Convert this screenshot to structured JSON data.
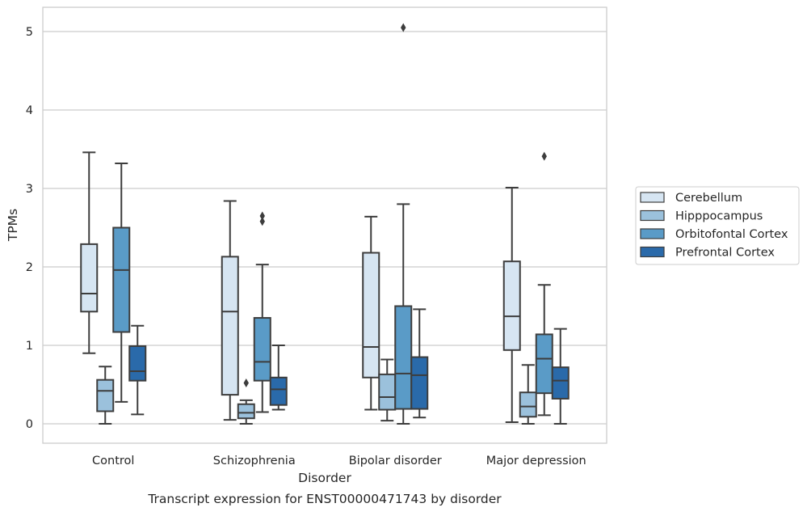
{
  "chart_data": {
    "type": "box",
    "xlabel": "Disorder",
    "ylabel": "TPMs",
    "caption": "Transcript expression for ENST00000471743 by disorder",
    "ylim": [
      -0.25,
      5.3
    ],
    "yticks": [
      0,
      1,
      2,
      3,
      4,
      5
    ],
    "grid": "horizontal",
    "legend_position": "right",
    "categories": [
      "Control",
      "Schizophrenia",
      "Bipolar disorder",
      "Major depression"
    ],
    "series": [
      {
        "name": "Cerebellum",
        "color": "#d6e5f2",
        "boxes": [
          {
            "whisker_low": 0.9,
            "q1": 1.43,
            "median": 1.66,
            "q3": 2.29,
            "whisker_high": 3.46,
            "outliers": []
          },
          {
            "whisker_low": 0.05,
            "q1": 0.37,
            "median": 1.43,
            "q3": 2.13,
            "whisker_high": 2.84,
            "outliers": []
          },
          {
            "whisker_low": 0.18,
            "q1": 0.59,
            "median": 0.98,
            "q3": 2.18,
            "whisker_high": 2.64,
            "outliers": []
          },
          {
            "whisker_low": 0.02,
            "q1": 0.94,
            "median": 1.37,
            "q3": 2.07,
            "whisker_high": 3.01,
            "outliers": []
          }
        ]
      },
      {
        "name": "Hipppocampus",
        "color": "#9bc1dc",
        "boxes": [
          {
            "whisker_low": 0.0,
            "q1": 0.16,
            "median": 0.42,
            "q3": 0.56,
            "whisker_high": 0.73,
            "outliers": []
          },
          {
            "whisker_low": 0.0,
            "q1": 0.07,
            "median": 0.14,
            "q3": 0.25,
            "whisker_high": 0.3,
            "outliers": [
              0.52
            ]
          },
          {
            "whisker_low": 0.04,
            "q1": 0.18,
            "median": 0.34,
            "q3": 0.63,
            "whisker_high": 0.82,
            "outliers": []
          },
          {
            "whisker_low": 0.0,
            "q1": 0.09,
            "median": 0.22,
            "q3": 0.4,
            "whisker_high": 0.75,
            "outliers": []
          }
        ]
      },
      {
        "name": "Orbitofontal Cortex",
        "color": "#5a9bc7",
        "boxes": [
          {
            "whisker_low": 0.28,
            "q1": 1.17,
            "median": 1.96,
            "q3": 2.5,
            "whisker_high": 3.32,
            "outliers": []
          },
          {
            "whisker_low": 0.15,
            "q1": 0.55,
            "median": 0.79,
            "q3": 1.35,
            "whisker_high": 2.03,
            "outliers": [
              2.58,
              2.65
            ]
          },
          {
            "whisker_low": 0.0,
            "q1": 0.19,
            "median": 0.64,
            "q3": 1.5,
            "whisker_high": 2.8,
            "outliers": [
              5.05
            ]
          },
          {
            "whisker_low": 0.11,
            "q1": 0.39,
            "median": 0.83,
            "q3": 1.14,
            "whisker_high": 1.77,
            "outliers": [
              3.41
            ]
          }
        ]
      },
      {
        "name": "Prefrontal Cortex",
        "color": "#2a6aaa",
        "boxes": [
          {
            "whisker_low": 0.12,
            "q1": 0.55,
            "median": 0.67,
            "q3": 0.99,
            "whisker_high": 1.25,
            "outliers": []
          },
          {
            "whisker_low": 0.18,
            "q1": 0.24,
            "median": 0.44,
            "q3": 0.59,
            "whisker_high": 1.0,
            "outliers": []
          },
          {
            "whisker_low": 0.08,
            "q1": 0.19,
            "median": 0.62,
            "q3": 0.85,
            "whisker_high": 1.46,
            "outliers": []
          },
          {
            "whisker_low": 0.0,
            "q1": 0.32,
            "median": 0.55,
            "q3": 0.72,
            "whisker_high": 1.21,
            "outliers": []
          }
        ]
      }
    ]
  }
}
